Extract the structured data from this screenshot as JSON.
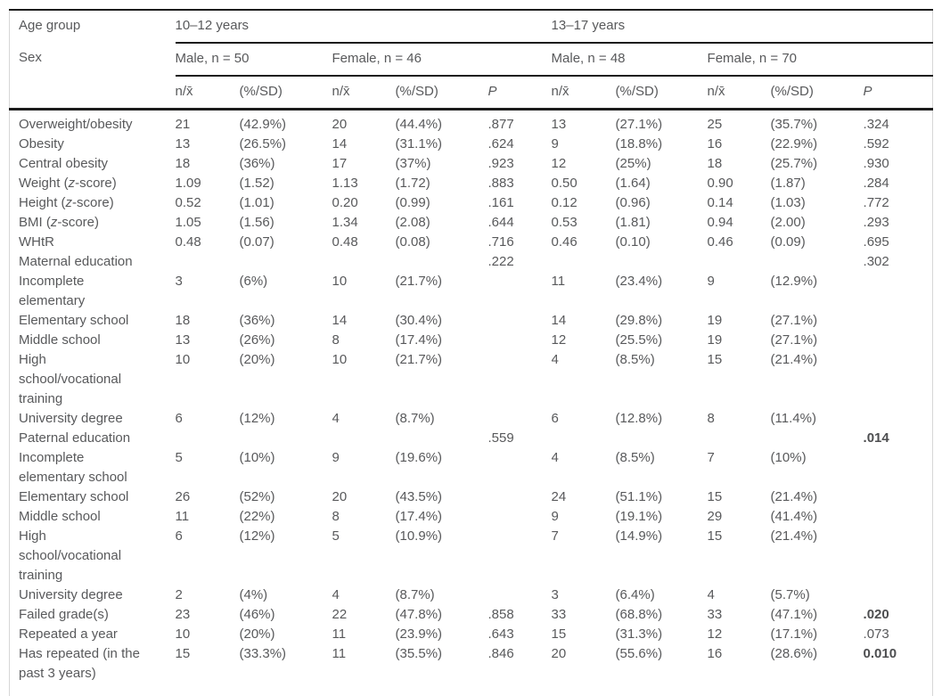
{
  "table": {
    "header": {
      "age_group_label": "Age group",
      "sex_label": "Sex",
      "age_groups": [
        "10–12 years",
        "13–17 years"
      ],
      "sex_groups": [
        "Male, n = 50",
        "Female, n = 46",
        "Male, n = 48",
        "Female, n = 70"
      ],
      "columns": [
        "n/x̄",
        "(%/SD)",
        "n/x̄",
        "(%/SD)",
        "P",
        "n/x̄",
        "(%/SD)",
        "n/x̄",
        "(%/SD)",
        "P"
      ]
    },
    "rows": [
      {
        "label": "Overweight/obesity",
        "cells": [
          "21",
          "(42.9%)",
          "20",
          "(44.4%)",
          ".877",
          "13",
          "(27.1%)",
          "25",
          "(35.7%)",
          ".324"
        ]
      },
      {
        "label": "Obesity",
        "cells": [
          "13",
          "(26.5%)",
          "14",
          "(31.1%)",
          ".624",
          "9",
          "(18.8%)",
          "16",
          "(22.9%)",
          ".592"
        ]
      },
      {
        "label": "Central obesity",
        "cells": [
          "18",
          "(36%)",
          "17",
          "(37%)",
          ".923",
          "12",
          "(25%)",
          "18",
          "(25.7%)",
          ".930"
        ]
      },
      {
        "label": "Weight (z-score)",
        "cells": [
          "1.09",
          "(1.52)",
          "1.13",
          "(1.72)",
          ".883",
          "0.50",
          "(1.64)",
          "0.90",
          "(1.87)",
          ".284"
        ]
      },
      {
        "label": "Height (z-score)",
        "cells": [
          "0.52",
          "(1.01)",
          "0.20",
          "(0.99)",
          ".161",
          "0.12",
          "(0.96)",
          "0.14",
          "(1.03)",
          ".772"
        ]
      },
      {
        "label": "BMI (z-score)",
        "cells": [
          "1.05",
          "(1.56)",
          "1.34",
          "(2.08)",
          ".644",
          "0.53",
          "(1.81)",
          "0.94",
          "(2.00)",
          ".293"
        ]
      },
      {
        "label": "WHtR",
        "cells": [
          "0.48",
          "(0.07)",
          "0.48",
          "(0.08)",
          ".716",
          "0.46",
          "(0.10)",
          "0.46",
          "(0.09)",
          ".695"
        ]
      },
      {
        "label": "Maternal education",
        "cells": [
          "",
          "",
          "",
          "",
          ".222",
          "",
          "",
          "",
          "",
          ".302"
        ]
      },
      {
        "label": "Incomplete elementary",
        "cells": [
          "3",
          "(6%)",
          "10",
          "(21.7%)",
          "",
          "11",
          "(23.4%)",
          "9",
          "(12.9%)",
          ""
        ]
      },
      {
        "label": "Elementary school",
        "cells": [
          "18",
          "(36%)",
          "14",
          "(30.4%)",
          "",
          "14",
          "(29.8%)",
          "19",
          "(27.1%)",
          ""
        ]
      },
      {
        "label": "Middle school",
        "cells": [
          "13",
          "(26%)",
          "8",
          "(17.4%)",
          "",
          "12",
          "(25.5%)",
          "19",
          "(27.1%)",
          ""
        ]
      },
      {
        "label": "High school/vocational training",
        "cells": [
          "10",
          "(20%)",
          "10",
          "(21.7%)",
          "",
          "4",
          "(8.5%)",
          "15",
          "(21.4%)",
          ""
        ]
      },
      {
        "label": "University degree",
        "cells": [
          "6",
          "(12%)",
          "4",
          "(8.7%)",
          "",
          "6",
          "(12.8%)",
          "8",
          "(11.4%)",
          ""
        ]
      },
      {
        "label": "Paternal education",
        "cells": [
          "",
          "",
          "",
          "",
          ".559",
          "",
          "",
          "",
          "",
          ".014"
        ],
        "bold": [
          9
        ]
      },
      {
        "label": "Incomplete elementary school",
        "cells": [
          "5",
          "(10%)",
          "9",
          "(19.6%)",
          "",
          "4",
          "(8.5%)",
          "7",
          "(10%)",
          ""
        ]
      },
      {
        "label": "Elementary school",
        "cells": [
          "26",
          "(52%)",
          "20",
          "(43.5%)",
          "",
          "24",
          "(51.1%)",
          "15",
          "(21.4%)",
          ""
        ]
      },
      {
        "label": "Middle school",
        "cells": [
          "11",
          "(22%)",
          "8",
          "(17.4%)",
          "",
          "9",
          "(19.1%)",
          "29",
          "(41.4%)",
          ""
        ]
      },
      {
        "label": "High school/vocational training",
        "cells": [
          "6",
          "(12%)",
          "5",
          "(10.9%)",
          "",
          "7",
          "(14.9%)",
          "15",
          "(21.4%)",
          ""
        ]
      },
      {
        "label": "University degree",
        "cells": [
          "2",
          "(4%)",
          "4",
          "(8.7%)",
          "",
          "3",
          "(6.4%)",
          "4",
          "(5.7%)",
          ""
        ]
      },
      {
        "label": "Failed grade(s)",
        "cells": [
          "23",
          "(46%)",
          "22",
          "(47.8%)",
          ".858",
          "33",
          "(68.8%)",
          "33",
          "(47.1%)",
          ".020"
        ],
        "bold": [
          9
        ]
      },
      {
        "label": "Repeated a year",
        "cells": [
          "10",
          "(20%)",
          "11",
          "(23.9%)",
          ".643",
          "15",
          "(31.3%)",
          "12",
          "(17.1%)",
          ".073"
        ],
        "bold": [
          9
        ]
      },
      {
        "label": "Has repeated (in the past 3 years)",
        "cells": [
          "15",
          "(33.3%)",
          "11",
          "(35.5%)",
          ".846",
          "20",
          "(55.6%)",
          "16",
          "(28.6%)",
          "0.010"
        ],
        "bold": [
          9
        ]
      }
    ],
    "bold_note": [
      "Repeated a year row P .073 is NOT bold"
    ]
  }
}
